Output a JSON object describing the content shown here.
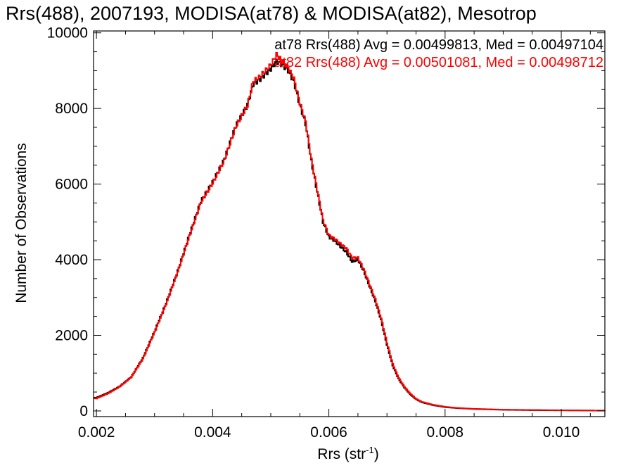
{
  "chart_data": {
    "type": "line",
    "title": "Rrs(488), 2007193, MODISA(at78) & MODISA(at82), Mesotrop",
    "xlabel": "Rrs (str",
    "xlabel_sup": "-1",
    "xlabel_close": ")",
    "ylabel": "Number of Observations",
    "xlim": [
      0.00195,
      0.01075
    ],
    "ylim": [
      -150,
      10050
    ],
    "x_ticks": [
      0.002,
      0.004,
      0.006,
      0.008,
      0.01
    ],
    "x_tick_labels": [
      "0.002",
      "0.004",
      "0.006",
      "0.008",
      "0.010"
    ],
    "y_ticks": [
      0,
      2000,
      4000,
      6000,
      8000,
      10000
    ],
    "y_tick_labels": [
      "0",
      "2000",
      "4000",
      "6000",
      "8000",
      "10000"
    ],
    "grid": false,
    "annotations": [
      {
        "text": "at78 Rrs(488) Avg = 0.00499813, Med = 0.00497104",
        "color": "#000000"
      },
      {
        "text": "at82 Rrs(488) Avg = 0.00501081, Med = 0.00498712",
        "color": "#ff0000"
      }
    ],
    "x": [
      0.002,
      0.0022,
      0.0024,
      0.0026,
      0.0028,
      0.003,
      0.0032,
      0.0034,
      0.0036,
      0.0038,
      0.004,
      0.0042,
      0.0044,
      0.0046,
      0.0047,
      0.0048,
      0.0049,
      0.005,
      0.0051,
      0.0052,
      0.0053,
      0.0054,
      0.0055,
      0.0056,
      0.0057,
      0.0058,
      0.0059,
      0.006,
      0.0061,
      0.0062,
      0.0063,
      0.0064,
      0.0065,
      0.0066,
      0.0067,
      0.0068,
      0.0069,
      0.007,
      0.0071,
      0.0072,
      0.0073,
      0.0074,
      0.0075,
      0.0076,
      0.0078,
      0.008,
      0.0082,
      0.0085,
      0.009,
      0.0095,
      0.01,
      0.0105,
      0.0107
    ],
    "series": [
      {
        "color": "#000000",
        "values": [
          350,
          480,
          650,
          900,
          1400,
          2100,
          2850,
          3700,
          4650,
          5550,
          6050,
          6650,
          7550,
          8100,
          8650,
          8750,
          8900,
          9050,
          9250,
          9150,
          9000,
          8700,
          8100,
          7600,
          6600,
          5800,
          5000,
          4600,
          4500,
          4350,
          4200,
          3950,
          4000,
          3700,
          3300,
          2900,
          2400,
          1750,
          1200,
          850,
          620,
          440,
          310,
          230,
          150,
          100,
          75,
          50,
          30,
          20,
          15,
          10,
          8
        ]
      },
      {
        "color": "#ff0000",
        "values": [
          330,
          460,
          640,
          890,
          1380,
          2080,
          2830,
          3680,
          4620,
          5520,
          6020,
          6620,
          7520,
          8080,
          8720,
          8820,
          8980,
          9150,
          9420,
          9250,
          9080,
          8780,
          8150,
          7650,
          6650,
          5850,
          5050,
          4650,
          4550,
          4420,
          4300,
          4050,
          4050,
          3750,
          3350,
          2950,
          2450,
          1800,
          1240,
          880,
          640,
          460,
          320,
          240,
          160,
          110,
          80,
          55,
          35,
          25,
          18,
          12,
          10
        ]
      }
    ]
  }
}
